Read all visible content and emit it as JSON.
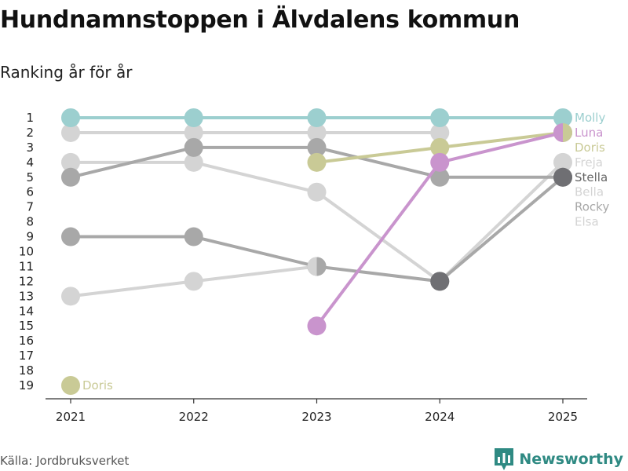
{
  "header": {
    "title": "Hundnamnstoppen i Älvdalens kommun",
    "subtitle": "Ranking år för år"
  },
  "footer": {
    "source": "Källa: Jordbruksverket",
    "brand": "Newsworthy",
    "brand_icon": "bar-chart-icon",
    "brand_color": "#2f8a83"
  },
  "chart_data": {
    "type": "line",
    "x": [
      2021,
      2022,
      2023,
      2024,
      2025
    ],
    "y_ticks": [
      1,
      2,
      3,
      4,
      5,
      6,
      7,
      8,
      9,
      10,
      11,
      12,
      13,
      14,
      15,
      16,
      17,
      18,
      19
    ],
    "ylim": [
      1,
      19
    ],
    "y_inverted": true,
    "grid": false,
    "series": [
      {
        "name": "Molly",
        "color": "#9ccfcf",
        "values": [
          1,
          1,
          1,
          1,
          1
        ]
      },
      {
        "name": "Luna",
        "color": "#c994cd",
        "values": [
          null,
          null,
          15,
          4,
          2
        ]
      },
      {
        "name": "Doris",
        "color": "#c9ca96",
        "values": [
          19,
          null,
          4,
          3,
          2
        ]
      },
      {
        "name": "Freja",
        "color": "#d4d4d4",
        "values": [
          4,
          4,
          6,
          12,
          4
        ]
      },
      {
        "name": "Stella",
        "color": "#a8a8a8",
        "values": [
          5,
          3,
          3,
          5,
          5
        ]
      },
      {
        "name": "Bella",
        "color": "#d4d4d4",
        "values": [
          2,
          2,
          2,
          2,
          null
        ]
      },
      {
        "name": "Rocky",
        "color": "#a8a8a8",
        "values": [
          9,
          9,
          11,
          12,
          5
        ]
      },
      {
        "name": "Elsa",
        "color": "#d4d4d4",
        "values": [
          13,
          12,
          11,
          null,
          null
        ]
      }
    ],
    "end_labels": [
      {
        "text": "Molly",
        "color": "#9ccfcf"
      },
      {
        "text": "Luna",
        "color": "#c994cd"
      },
      {
        "text": "Doris",
        "color": "#c9ca96"
      },
      {
        "text": "Freja",
        "color": "#d4d4d4"
      },
      {
        "text": "Stella",
        "color": "#666666"
      },
      {
        "text": "Bella",
        "color": "#d4d4d4"
      },
      {
        "text": "Rocky",
        "color": "#a8a8a8"
      },
      {
        "text": "Elsa",
        "color": "#d4d4d4"
      }
    ],
    "point_labels": [
      {
        "text": "Doris",
        "x": 2021,
        "y": 19,
        "color": "#c9ca96"
      }
    ],
    "highlight_colors": {
      "dark": "#6f6f73"
    }
  }
}
